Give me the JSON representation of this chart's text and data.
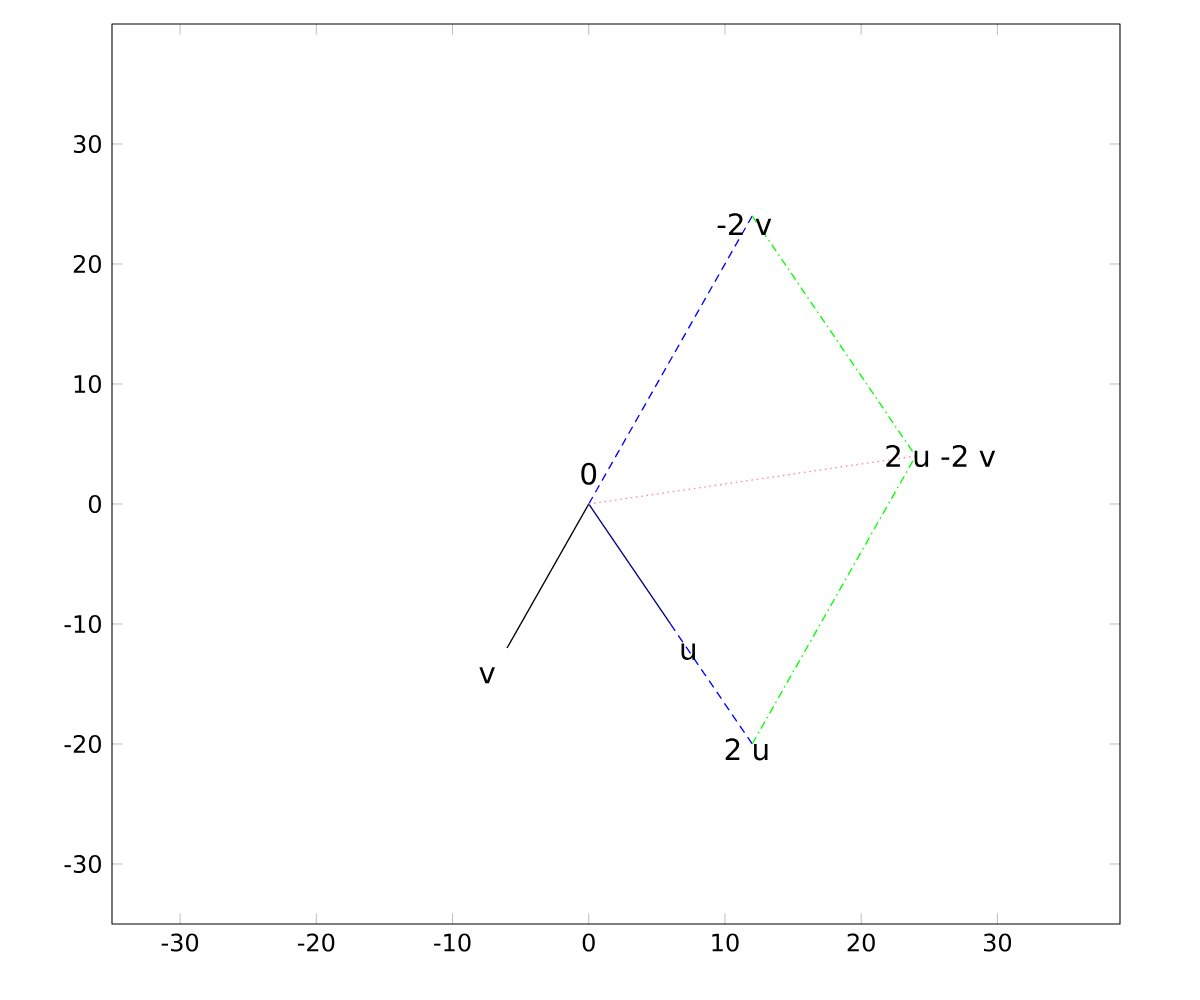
{
  "chart_data": {
    "type": "line",
    "series": [
      {
        "color": "#000080",
        "x": [
          0,
          6
        ],
        "values": [
          0,
          -10
        ],
        "line_style": "solid"
      },
      {
        "color": "#000000",
        "x": [
          0,
          -6
        ],
        "values": [
          0,
          -12
        ],
        "line_style": "solid"
      },
      {
        "color": "#0000ff",
        "x": [
          6,
          12
        ],
        "values": [
          -10,
          -20
        ],
        "line_style": "dashed"
      },
      {
        "color": "#0000ff",
        "x": [
          0,
          12
        ],
        "values": [
          0,
          24
        ],
        "line_style": "dashed"
      },
      {
        "color": "#00ff00",
        "x": [
          12,
          24
        ],
        "values": [
          -20,
          4
        ],
        "line_style": "dashdot"
      },
      {
        "color": "#00ff00",
        "x": [
          12,
          24
        ],
        "values": [
          24,
          4
        ],
        "line_style": "dashdot"
      },
      {
        "color": "#ff88aa",
        "x": [
          0,
          24
        ],
        "values": [
          0,
          4
        ],
        "line_style": "dotted"
      }
    ],
    "annotations": [
      {
        "text": "0",
        "x": 0,
        "y": 0
      },
      {
        "text": "u",
        "x": 6,
        "y": -10
      },
      {
        "text": "v",
        "x": -6,
        "y": -12
      },
      {
        "text": "2 u",
        "x": 12,
        "y": -20
      },
      {
        "text": "-2 v",
        "x": 12,
        "y": 24
      },
      {
        "text": "2 u -2 v",
        "x": 24,
        "y": 4
      }
    ],
    "xlim": [
      -35,
      39
    ],
    "ylim": [
      -35,
      40
    ],
    "xticks": [
      -30,
      -20,
      -10,
      0,
      10,
      20,
      30
    ],
    "yticks": [
      -30,
      -20,
      -10,
      0,
      10,
      20,
      30
    ],
    "grid": false
  }
}
